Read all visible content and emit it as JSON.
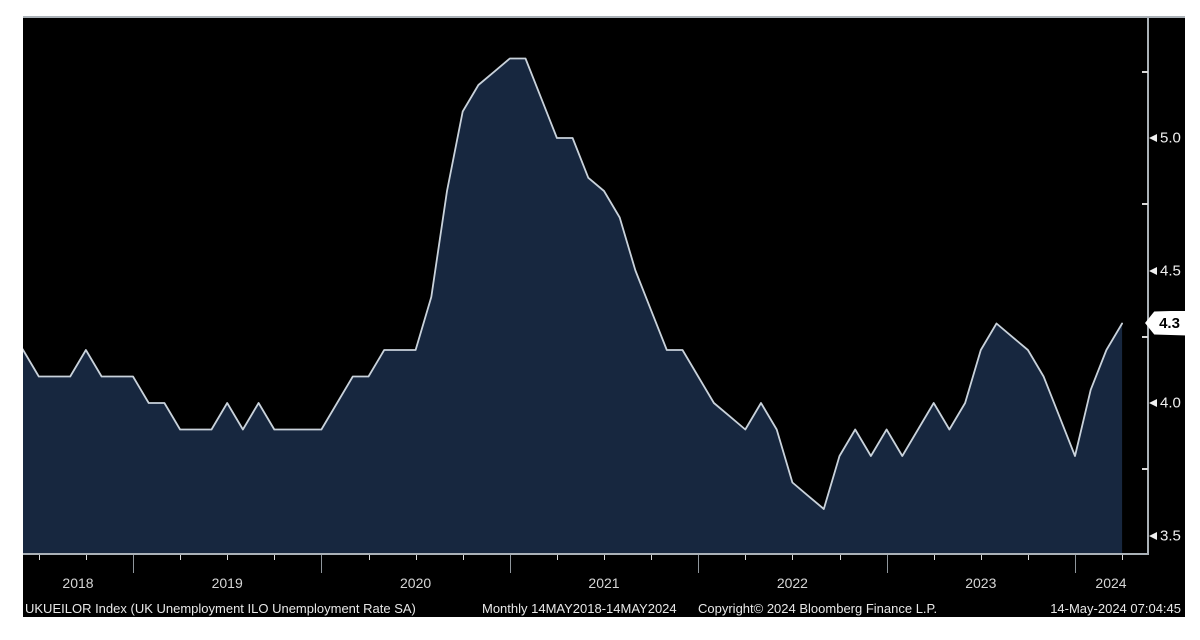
{
  "chart_data": {
    "type": "area",
    "title": "UKUEILOR Index (UK Unemployment ILO Unemployment Rate SA)",
    "frequency_label": "Monthly 14MAY2018-14MAY2024",
    "copyright": "Copyright© 2024 Bloomberg Finance L.P.",
    "timestamp": "14-May-2024 07:04:45",
    "x_start": "2018-05",
    "x_frequency": "monthly",
    "x_tick_years": [
      "2018",
      "2019",
      "2020",
      "2021",
      "2022",
      "2023",
      "2024"
    ],
    "y_ticks": [
      5.0,
      4.5,
      4.0,
      3.5
    ],
    "y_minor_ticks": [
      5.25,
      4.75,
      4.25,
      3.75
    ],
    "ylim": [
      3.43,
      5.46
    ],
    "grid": false,
    "legend_position": "none",
    "last_value": 4.3,
    "last_value_label": "4.3",
    "series": [
      {
        "name": "UKUEILOR Index",
        "values": [
          4.3,
          4.2,
          4.1,
          4.1,
          4.1,
          4.2,
          4.1,
          4.1,
          4.1,
          4.0,
          4.0,
          3.9,
          3.9,
          3.9,
          4.0,
          3.9,
          4.0,
          3.9,
          3.9,
          3.9,
          3.9,
          4.0,
          4.1,
          4.1,
          4.2,
          4.2,
          4.2,
          4.4,
          4.8,
          5.1,
          5.2,
          5.25,
          5.3,
          5.3,
          5.15,
          5.0,
          5.0,
          4.85,
          4.8,
          4.7,
          4.5,
          4.35,
          4.2,
          4.2,
          4.1,
          4.0,
          3.95,
          3.9,
          4.0,
          3.9,
          3.7,
          3.65,
          3.6,
          3.8,
          3.9,
          3.8,
          3.9,
          3.8,
          3.9,
          4.0,
          3.9,
          4.0,
          4.2,
          4.3,
          4.25,
          4.2,
          4.1,
          3.95,
          3.8,
          4.05,
          4.2,
          4.3
        ]
      }
    ],
    "colors": {
      "panel_bg": "#000000",
      "page_margin": "#ffffff",
      "area_fill": "#17273f",
      "area_line": "#c9d2db",
      "axis": "#aab1b7",
      "year_divider": "#8f969c",
      "tick_minor": "#d9d9d9",
      "label": "#d6d6d6",
      "y_label": "#f0f0f0",
      "footer_text": "#e8e8e8",
      "badge_bg": "#ffffff",
      "badge_text": "#000000"
    }
  }
}
